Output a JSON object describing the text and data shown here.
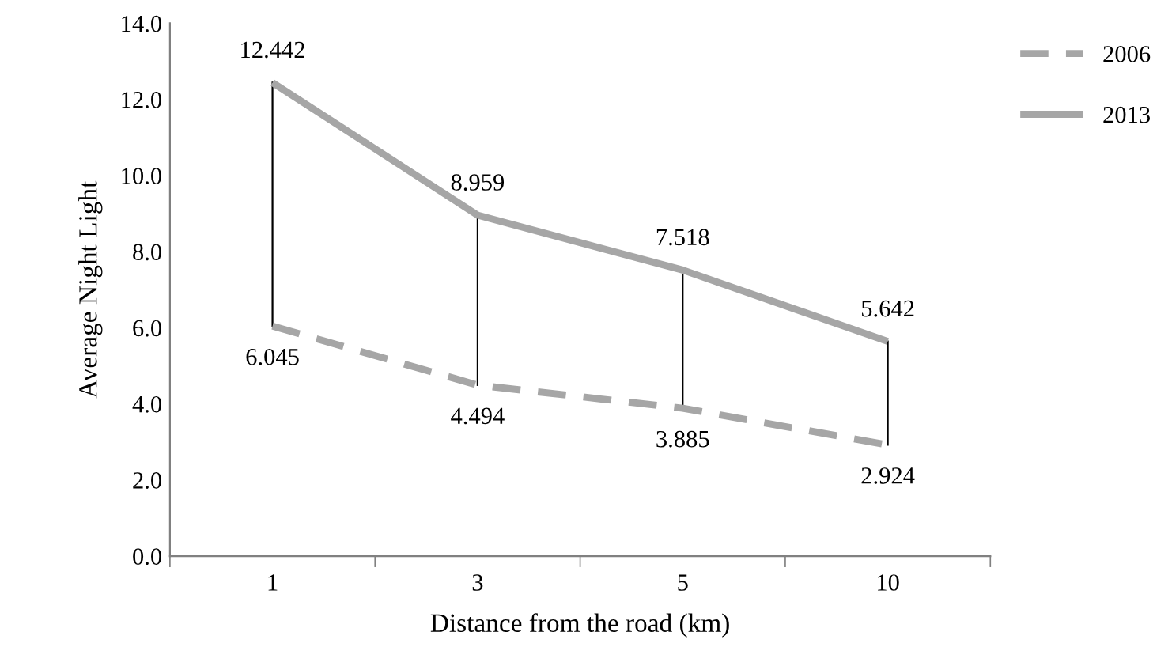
{
  "chart_data": {
    "type": "line",
    "xlabel": "Distance from the road (km)",
    "ylabel": "Average Night Light",
    "categories": [
      "1",
      "3",
      "5",
      "10"
    ],
    "series": [
      {
        "name": "2006",
        "color": "#a6a6a6",
        "line_style": "dashed",
        "values": [
          6.045,
          4.494,
          3.885,
          2.924
        ]
      },
      {
        "name": "2013",
        "color": "#a6a6a6",
        "line_style": "solid",
        "values": [
          12.442,
          8.959,
          7.518,
          5.642
        ]
      }
    ],
    "ylim": [
      0,
      14
    ],
    "yticks": [
      {
        "value": 0,
        "label": "0.0"
      },
      {
        "value": 2,
        "label": "2.0"
      },
      {
        "value": 4,
        "label": "4.0"
      },
      {
        "value": 6,
        "label": "6.0"
      },
      {
        "value": 8,
        "label": "8.0"
      },
      {
        "value": 10,
        "label": "10.0"
      },
      {
        "value": 12,
        "label": "12.0"
      },
      {
        "value": 14,
        "label": "14.0"
      }
    ],
    "data_labels": true,
    "grid": false,
    "legend": "top right",
    "marker": "none"
  }
}
